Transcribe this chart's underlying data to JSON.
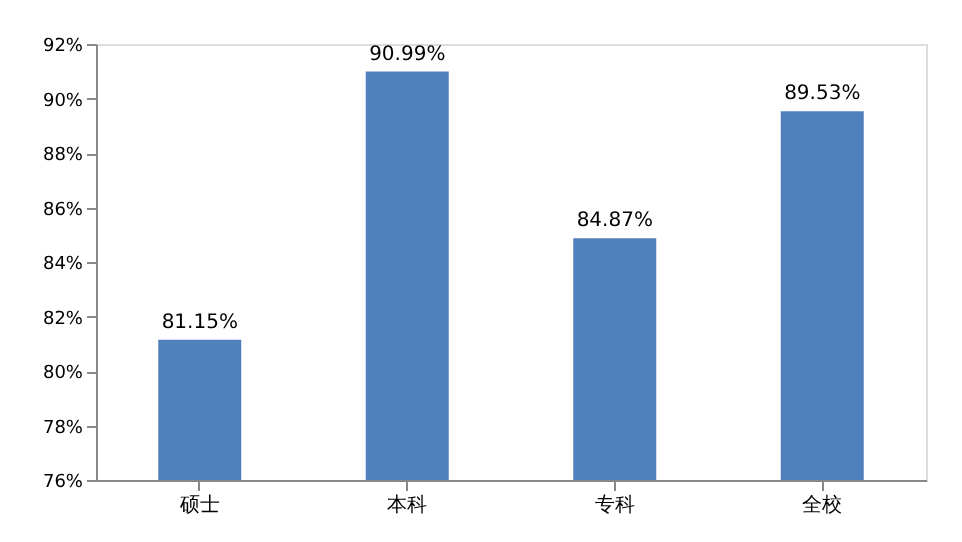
{
  "chart_data": {
    "type": "bar",
    "categories": [
      "硕士",
      "本科",
      "专科",
      "全校"
    ],
    "values": [
      81.15,
      90.99,
      84.87,
      89.53
    ],
    "value_labels": [
      "81.15%",
      "90.99%",
      "84.87%",
      "89.53%"
    ],
    "color": "#4f81bd",
    "ylim": [
      76,
      92
    ],
    "yticks": [
      {
        "value": 76,
        "label": "76%"
      },
      {
        "value": 78,
        "label": "78%"
      },
      {
        "value": 80,
        "label": "80%"
      },
      {
        "value": 82,
        "label": "82%"
      },
      {
        "value": 84,
        "label": "84%"
      },
      {
        "value": 86,
        "label": "86%"
      },
      {
        "value": 88,
        "label": "88%"
      },
      {
        "value": 90,
        "label": "90%"
      },
      {
        "value": 92,
        "label": "92%"
      }
    ],
    "grid": false
  }
}
